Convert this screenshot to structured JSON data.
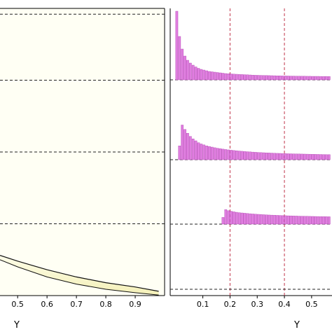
{
  "chart_data": [
    {
      "type": "area",
      "xlabel": "Y",
      "x_ticks": [
        0.5,
        0.6,
        0.7,
        0.8,
        0.9
      ],
      "xlim": [
        0.44,
        1.0
      ],
      "ylim": [
        0,
        1
      ],
      "reference_levels": [
        0.25,
        0.5,
        0.75,
        0.98
      ],
      "upper_edge": {
        "x": [
          0.44,
          0.5,
          0.6,
          0.7,
          0.8,
          0.9,
          0.98
        ],
        "y": [
          0.14,
          0.12,
          0.09,
          0.065,
          0.045,
          0.03,
          0.015
        ]
      },
      "lower_edge": {
        "x": [
          0.44,
          0.5,
          0.6,
          0.7,
          0.8,
          0.9,
          0.98
        ],
        "y": [
          0.125,
          0.1,
          0.065,
          0.04,
          0.022,
          0.01,
          0.002
        ]
      },
      "colors": {
        "background": "#fffff4",
        "fill_top": "#fdfde8",
        "fill_bottom": "#f4f0b8",
        "fill": "#f7f3c4",
        "edge": "#111111"
      }
    },
    {
      "type": "bar",
      "xlabel": "Y",
      "x_ticks": [
        0.1,
        0.2,
        0.3,
        0.4,
        0.5
      ],
      "xlim": [
        -0.02,
        0.575
      ],
      "ylim": [
        0,
        1
      ],
      "vlines": [
        0.2,
        0.4
      ],
      "bin_width": 0.01,
      "series": [
        {
          "x": [
            0.0,
            0.01,
            0.02,
            0.03,
            0.04,
            0.05,
            0.06,
            0.07,
            0.08,
            0.09,
            0.1,
            0.11,
            0.12,
            0.13,
            0.14,
            0.15,
            0.16,
            0.17,
            0.18,
            0.19,
            0.2,
            0.21,
            0.22,
            0.23,
            0.24,
            0.25,
            0.26,
            0.27,
            0.28,
            0.29,
            0.3,
            0.31,
            0.32,
            0.33,
            0.34,
            0.35,
            0.36,
            0.37,
            0.38,
            0.39,
            0.4,
            0.41,
            0.42,
            0.43,
            0.44,
            0.45,
            0.46,
            0.47,
            0.48,
            0.49,
            0.5,
            0.51,
            0.52,
            0.53,
            0.54,
            0.55,
            0.56
          ],
          "values": [
            0.98,
            0.62,
            0.44,
            0.34,
            0.28,
            0.24,
            0.21,
            0.185,
            0.165,
            0.15,
            0.14,
            0.13,
            0.12,
            0.115,
            0.11,
            0.105,
            0.1,
            0.095,
            0.09,
            0.088,
            0.085,
            0.082,
            0.08,
            0.078,
            0.076,
            0.074,
            0.072,
            0.07,
            0.068,
            0.066,
            0.065,
            0.064,
            0.063,
            0.062,
            0.061,
            0.06,
            0.059,
            0.058,
            0.057,
            0.056,
            0.056,
            0.055,
            0.054,
            0.054,
            0.053,
            0.053,
            0.052,
            0.052,
            0.051,
            0.051,
            0.05,
            0.05,
            0.05,
            0.049,
            0.049,
            0.049,
            0.048
          ]
        },
        {
          "x": [
            0.01,
            0.02,
            0.03,
            0.04,
            0.05,
            0.06,
            0.07,
            0.08,
            0.09,
            0.1,
            0.11,
            0.12,
            0.13,
            0.14,
            0.15,
            0.16,
            0.17,
            0.18,
            0.19,
            0.2,
            0.21,
            0.22,
            0.23,
            0.24,
            0.25,
            0.26,
            0.27,
            0.28,
            0.29,
            0.3,
            0.31,
            0.32,
            0.33,
            0.34,
            0.35,
            0.36,
            0.37,
            0.38,
            0.39,
            0.4,
            0.41,
            0.42,
            0.43,
            0.44,
            0.45,
            0.46,
            0.47,
            0.48,
            0.49,
            0.5,
            0.51,
            0.52,
            0.53,
            0.54,
            0.55,
            0.56
          ],
          "values": [
            0.22,
            0.55,
            0.48,
            0.42,
            0.37,
            0.33,
            0.3,
            0.27,
            0.25,
            0.235,
            0.22,
            0.21,
            0.2,
            0.19,
            0.182,
            0.175,
            0.168,
            0.162,
            0.156,
            0.151,
            0.146,
            0.142,
            0.138,
            0.134,
            0.13,
            0.127,
            0.124,
            0.121,
            0.118,
            0.115,
            0.113,
            0.111,
            0.109,
            0.107,
            0.105,
            0.103,
            0.101,
            0.1,
            0.098,
            0.097,
            0.095,
            0.094,
            0.093,
            0.092,
            0.091,
            0.09,
            0.089,
            0.088,
            0.087,
            0.086,
            0.085,
            0.084,
            0.083,
            0.082,
            0.081,
            0.08
          ]
        },
        {
          "x": [
            0.17,
            0.18,
            0.19,
            0.2,
            0.21,
            0.22,
            0.23,
            0.24,
            0.25,
            0.26,
            0.27,
            0.28,
            0.29,
            0.3,
            0.31,
            0.32,
            0.33,
            0.34,
            0.35,
            0.36,
            0.37,
            0.38,
            0.39,
            0.4,
            0.41,
            0.42,
            0.43,
            0.44,
            0.45,
            0.46,
            0.47,
            0.48,
            0.49,
            0.5,
            0.51,
            0.52,
            0.53,
            0.54,
            0.55,
            0.56
          ],
          "values": [
            0.12,
            0.26,
            0.24,
            0.23,
            0.22,
            0.212,
            0.205,
            0.2,
            0.195,
            0.19,
            0.186,
            0.182,
            0.178,
            0.175,
            0.172,
            0.169,
            0.166,
            0.163,
            0.161,
            0.159,
            0.157,
            0.155,
            0.153,
            0.151,
            0.149,
            0.148,
            0.146,
            0.145,
            0.143,
            0.142,
            0.141,
            0.14,
            0.139,
            0.138,
            0.137,
            0.136,
            0.135,
            0.134,
            0.133,
            0.132
          ]
        },
        {
          "x": [],
          "values": []
        }
      ],
      "colors": {
        "bar": "#e07ee0",
        "bar_edge": "#b144b1",
        "vline": "#c0354a",
        "hline": "#222222"
      }
    }
  ]
}
